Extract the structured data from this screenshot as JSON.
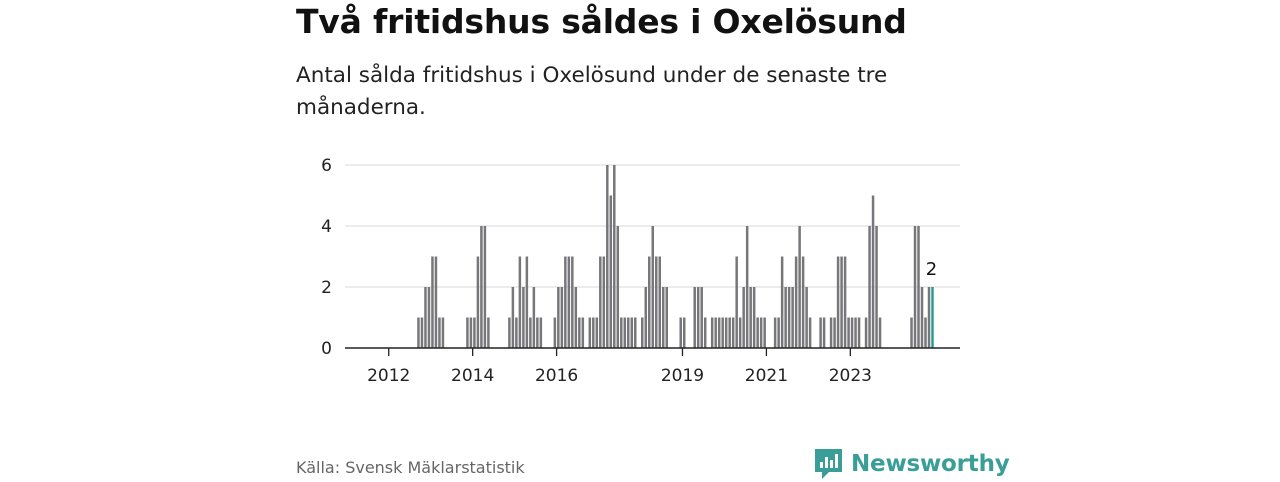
{
  "header": {
    "title": "Två fritidshus såldes i Oxelösund",
    "subtitle": "Antal sålda fritidshus i Oxelösund under de senaste tre månaderna."
  },
  "footer": {
    "source": "Källa: Svensk Mäklarstatistik",
    "brand": "Newsworthy"
  },
  "colors": {
    "bar": "#77777b",
    "highlight": "#2a9d92",
    "brand": "#3a9e98",
    "grid": "#d8d8d8"
  },
  "chart_data": {
    "type": "bar",
    "x_unit": "month",
    "x_start": "2011-11",
    "ylim": [
      0,
      6
    ],
    "y_ticks": [
      "0",
      "2",
      "4",
      "6"
    ],
    "x_ticks": [
      {
        "label": "2012",
        "year": 2012
      },
      {
        "label": "2014",
        "year": 2014
      },
      {
        "label": "2016",
        "year": 2016
      },
      {
        "label": "2019",
        "year": 2019
      },
      {
        "label": "2021",
        "year": 2021
      },
      {
        "label": "2023",
        "year": 2023
      }
    ],
    "values": [
      0,
      0,
      0,
      0,
      0,
      0,
      0,
      0,
      0,
      0,
      1,
      1,
      2,
      2,
      3,
      3,
      1,
      1,
      0,
      0,
      0,
      0,
      0,
      0,
      1,
      1,
      1,
      3,
      4,
      4,
      1,
      0,
      0,
      0,
      0,
      0,
      1,
      2,
      1,
      3,
      2,
      3,
      1,
      2,
      1,
      1,
      0,
      0,
      0,
      1,
      2,
      2,
      3,
      3,
      3,
      2,
      1,
      1,
      0,
      1,
      1,
      1,
      3,
      3,
      6,
      5,
      6,
      4,
      1,
      1,
      1,
      1,
      1,
      0,
      1,
      2,
      3,
      4,
      3,
      3,
      2,
      2,
      0,
      0,
      0,
      1,
      1,
      0,
      0,
      2,
      2,
      2,
      1,
      0,
      1,
      1,
      1,
      1,
      1,
      1,
      1,
      3,
      1,
      2,
      4,
      2,
      2,
      1,
      1,
      1,
      0,
      0,
      1,
      1,
      3,
      2,
      2,
      2,
      3,
      4,
      3,
      2,
      1,
      0,
      0,
      1,
      1,
      0,
      1,
      1,
      3,
      3,
      3,
      1,
      1,
      1,
      1,
      0,
      1,
      4,
      5,
      4,
      1,
      0,
      0,
      0,
      0,
      0,
      0,
      0,
      0,
      1,
      4,
      4,
      2,
      1,
      2,
      2
    ],
    "highlight_last": true,
    "last_label": "2"
  }
}
